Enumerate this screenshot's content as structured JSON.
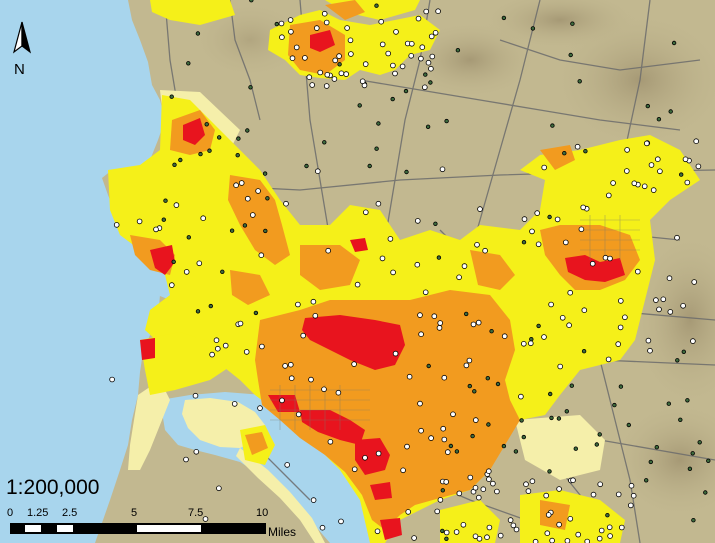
{
  "map": {
    "colors": {
      "water": "#a8d5ed",
      "land": "#c2b890",
      "terrain_dark": "#9d9070",
      "road": "#6c6c6c",
      "density_low_light": "#f5efaa",
      "density_low": "#f5f019",
      "density_mid": "#f29b1f",
      "density_high": "#e8141e",
      "point_green": "#3d6b3d",
      "point_white": "#ffffff"
    },
    "layers": [
      "water-body",
      "terrain",
      "roads",
      "density-zones",
      "point-markers"
    ]
  },
  "north_arrow": {
    "icon": "north-arrow-icon",
    "label": "N"
  },
  "scale": {
    "ratio": "1:200,000",
    "ticks": [
      "0",
      "1.25",
      "2.5",
      "5",
      "7.5",
      "10"
    ],
    "unit": "Miles"
  }
}
